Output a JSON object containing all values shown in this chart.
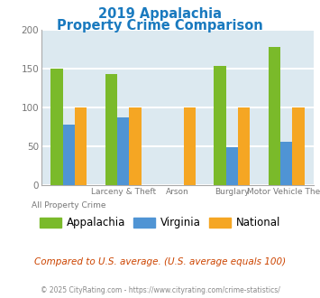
{
  "title_line1": "2019 Appalachia",
  "title_line2": "Property Crime Comparison",
  "title_color": "#1a7abf",
  "series": {
    "Appalachia": {
      "color": "#7aba2a",
      "values": [
        150,
        143,
        null,
        153,
        178
      ]
    },
    "Virginia": {
      "color": "#4f94d4",
      "values": [
        78,
        87,
        null,
        49,
        56
      ]
    },
    "National": {
      "color": "#f5a623",
      "values": [
        100,
        100,
        100,
        100,
        100
      ]
    }
  },
  "top_labels": [
    "",
    "Larceny & Theft",
    "Arson",
    "Burglary",
    "Motor Vehicle Theft"
  ],
  "bot_labels": [
    "All Property Crime",
    "",
    "",
    "",
    ""
  ],
  "ylim": [
    0,
    200
  ],
  "yticks": [
    0,
    50,
    100,
    150,
    200
  ],
  "plot_bg_color": "#dce9f0",
  "outer_bg_color": "#ffffff",
  "grid_color": "#ffffff",
  "tick_color": "#777777",
  "spine_color": "#aaaaaa",
  "footnote": "Compared to U.S. average. (U.S. average equals 100)",
  "footnote_color": "#cc4400",
  "copyright": "© 2025 CityRating.com - https://www.cityrating.com/crime-statistics/",
  "copyright_color": "#888888",
  "bar_width": 0.22,
  "group_positions": [
    0,
    1,
    2,
    3,
    4
  ]
}
